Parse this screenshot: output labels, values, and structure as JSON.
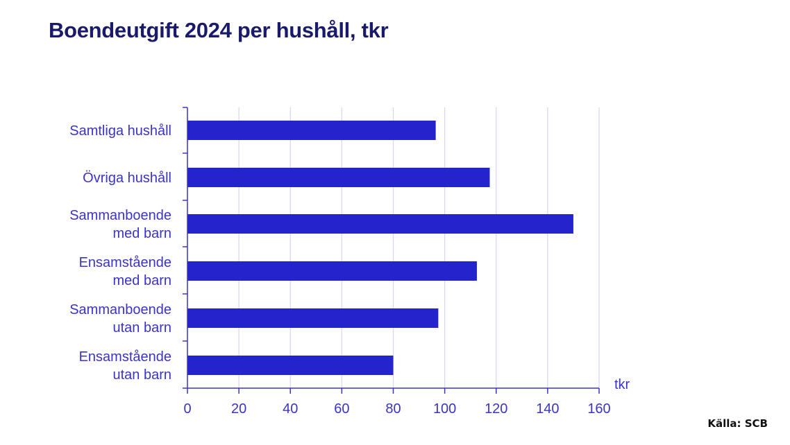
{
  "source": "Källa: SCB",
  "colors": {
    "bar": "#2424cc",
    "grid": "#d6d6f0",
    "axis": "#3a33c9",
    "text": "#3a33c9",
    "title": "#1a1a6b"
  },
  "chart_data": {
    "type": "bar",
    "orientation": "horizontal",
    "title": "Boendeutgift 2024 per hushåll, tkr",
    "unit_label": "tkr",
    "categories": [
      [
        "Samtliga hushåll"
      ],
      [
        "Övriga hushåll"
      ],
      [
        "Sammanboende",
        "med barn"
      ],
      [
        "Ensamstående",
        "med barn"
      ],
      [
        "Sammanboende",
        "utan barn"
      ],
      [
        "Ensamstående",
        "utan barn"
      ]
    ],
    "values": [
      96.5,
      117.5,
      150,
      112.5,
      97.5,
      80
    ],
    "xlim": [
      0,
      160
    ],
    "xticks": [
      0,
      20,
      40,
      60,
      80,
      100,
      120,
      140,
      160
    ],
    "grid": true
  }
}
